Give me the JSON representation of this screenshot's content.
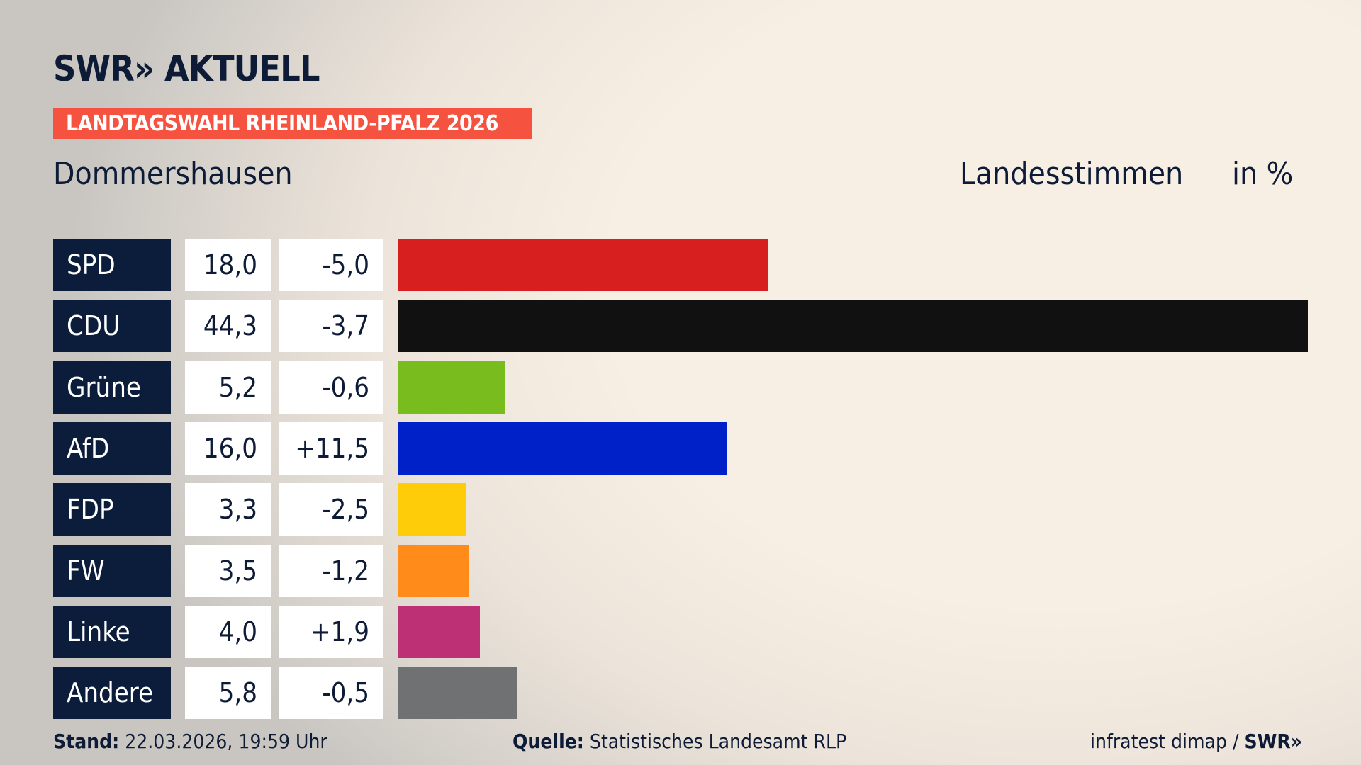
{
  "header": {
    "logo": "SWR» AKTUELL",
    "banner": "LANDTAGSWAHL RHEINLAND-PFALZ 2026",
    "place": "Dommershausen",
    "measure": "Landesstimmen",
    "unit": "in %"
  },
  "chart_data": {
    "type": "bar",
    "orientation": "horizontal",
    "xlim": [
      0,
      44.3
    ],
    "categories": [
      "SPD",
      "CDU",
      "Grüne",
      "AfD",
      "FDP",
      "FW",
      "Linke",
      "Andere"
    ],
    "values": [
      18.0,
      44.3,
      5.2,
      16.0,
      3.3,
      3.5,
      4.0,
      5.8
    ],
    "value_labels": [
      "18,0",
      "44,3",
      "5,2",
      "16,0",
      "3,3",
      "3,5",
      "4,0",
      "5,8"
    ],
    "diff_labels": [
      "-5,0",
      "-3,7",
      "-0,6",
      "+11,5",
      "-2,5",
      "-1,2",
      "+1,9",
      "-0,5"
    ],
    "colors": [
      "#d81f20",
      "#111111",
      "#78bc1e",
      "#0021c8",
      "#ffcc0a",
      "#ff8c1a",
      "#be3075",
      "#707173"
    ]
  },
  "footer": {
    "stand_label": "Stand:",
    "stand_value": "22.03.2026, 19:59 Uhr",
    "source_label": "Quelle:",
    "source_value": "Statistisches Landesamt RLP",
    "credit": "infratest dimap /",
    "credit_logo": "SWR»"
  }
}
